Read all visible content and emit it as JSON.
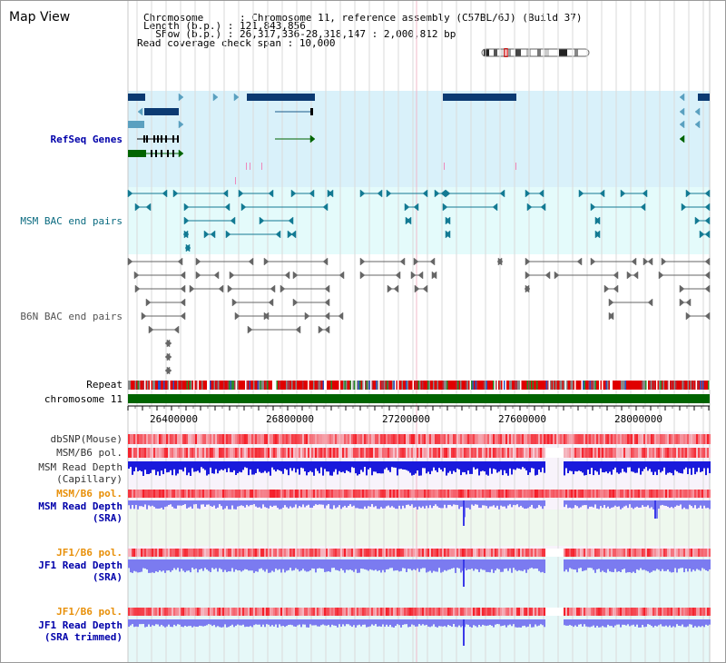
{
  "header": {
    "title": "Map View",
    "chromosome_label": "Chromosome      : ",
    "chromosome_value": "Chromosome 11, reference assembly (C57BL/6J) (Build 37)",
    "length_label": "Length (b.p.) : ",
    "length_value": "121,843,856",
    "show_label": "  Show (b.p.) : ",
    "show_value": "26,317,336-28,318,147 : 2,000,812 bp",
    "span_label": "Read coverage check span : ",
    "span_value": "10,000"
  },
  "tracks": {
    "refseq": "RefSeq Genes",
    "msm_bac": "MSM BAC end pairs",
    "b6n_bac": "B6N BAC end pairs",
    "repeat": "Repeat",
    "chromosome": "chromosome 11",
    "dbsnp": "dbSNP(Mouse)",
    "msm_b6_pol_1": "MSM/B6 pol.",
    "msm_depth_cap_1": "MSM Read Depth",
    "msm_depth_cap_2": "(Capillary)",
    "msm_b6_pol_2": "MSM/B6 pol.",
    "msm_depth_sra_1": "MSM Read Depth",
    "msm_depth_sra_2": "(SRA)",
    "jf1_b6_pol_1": "JF1/B6 pol.",
    "jf1_depth_sra_1": "JF1 Read Depth",
    "jf1_depth_sra_2": "(SRA)",
    "jf1_b6_pol_2": "JF1/B6 pol.",
    "jf1_depth_trim_1": "JF1 Read Depth",
    "jf1_depth_trim_2": "(SRA trimmed)"
  },
  "axis": {
    "ticks": [
      "26400000",
      "26800000",
      "27200000",
      "27600000",
      "28000000"
    ]
  },
  "colors": {
    "refseq_bg": "#d9f1fa",
    "msm_bac_bg": "#e4fbfb",
    "gene_dark": "#0b3a72",
    "msm_bac": "#137a93",
    "b6n_bac": "#666666",
    "chromosome": "#006400",
    "msm_label": "#0b6b80",
    "b6n_label": "#555555",
    "refseq_label": "#0000aa",
    "orange_label": "#e8900a",
    "depth_blue": "#1a1adc",
    "depth_sra": "#7b7bf0"
  }
}
